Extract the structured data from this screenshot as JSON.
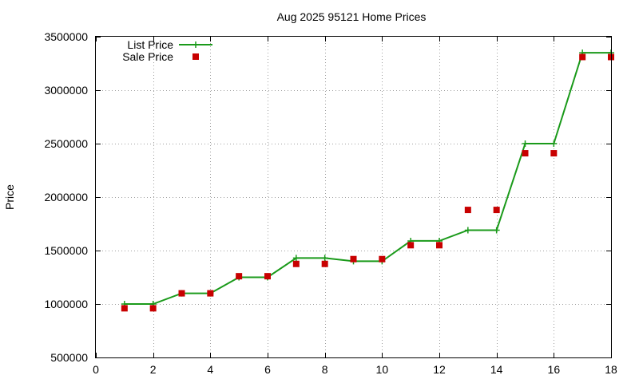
{
  "chart_data": {
    "type": "line",
    "title": "Aug 2025 95121 Home Prices",
    "xlabel": "",
    "ylabel": "Price",
    "xlim": [
      0,
      18
    ],
    "ylim": [
      500000,
      3500000
    ],
    "xticks": [
      "0",
      "2",
      "4",
      "6",
      "8",
      "10",
      "12",
      "14",
      "16",
      "18"
    ],
    "yticks": [
      "500000",
      "1000000",
      "1500000",
      "2000000",
      "2500000",
      "3000000",
      "3500000"
    ],
    "grid": true,
    "legend_position": "top-left",
    "series": [
      {
        "name": "List Price",
        "style": "linespoints",
        "color": "#1a9a1a",
        "x": [
          1,
          2,
          3,
          4,
          5,
          6,
          7,
          8,
          9,
          10,
          11,
          12,
          13,
          14,
          15,
          16,
          17,
          18
        ],
        "y": [
          1000000,
          1000000,
          1100000,
          1100000,
          1250000,
          1250000,
          1430000,
          1430000,
          1400000,
          1400000,
          1590000,
          1590000,
          1690000,
          1690000,
          2500000,
          2500000,
          3350000,
          3350000
        ]
      },
      {
        "name": "Sale Price",
        "style": "points",
        "color": "#c80000",
        "x": [
          1,
          2,
          3,
          4,
          5,
          6,
          7,
          8,
          9,
          10,
          11,
          12,
          13,
          14,
          15,
          16,
          17,
          18
        ],
        "y": [
          960000,
          960000,
          1100000,
          1100000,
          1260000,
          1260000,
          1375000,
          1375000,
          1420000,
          1420000,
          1550000,
          1550000,
          1880000,
          1880000,
          2410000,
          2410000,
          3310000,
          3310000
        ]
      }
    ]
  }
}
